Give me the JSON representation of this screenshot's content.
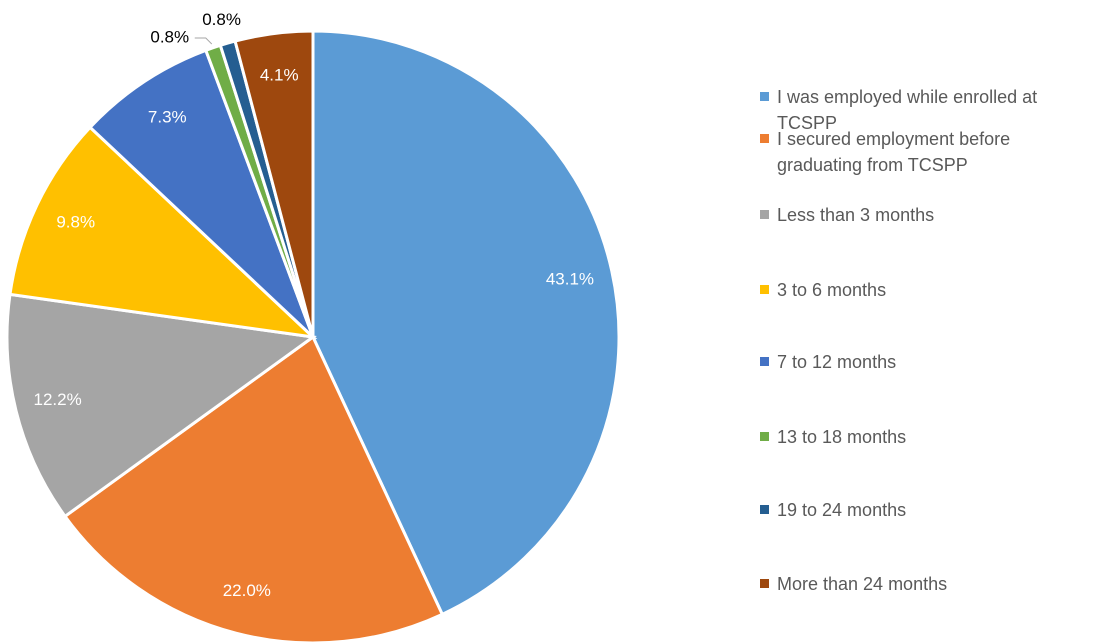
{
  "chart_data": {
    "type": "pie",
    "categories": [
      "I was employed while enrolled at TCSPP",
      "I secured employment before graduating from TCSPP",
      "Less than 3 months",
      "3 to 6 months",
      "7 to 12 months",
      "13 to 18 months",
      "19 to 24 months",
      "More than 24 months"
    ],
    "values": [
      43.1,
      22.0,
      12.2,
      9.8,
      7.3,
      0.8,
      0.8,
      4.1
    ],
    "value_labels": [
      "43.1%",
      "22.0%",
      "12.2%",
      "9.8%",
      "7.3%",
      "0.8%",
      "0.8%",
      "4.1%"
    ],
    "colors": [
      "#5b9bd5",
      "#ed7d31",
      "#a5a5a5",
      "#ffc000",
      "#4472c4",
      "#70ad47",
      "#255e91",
      "#9e480e"
    ],
    "legend": "right"
  }
}
